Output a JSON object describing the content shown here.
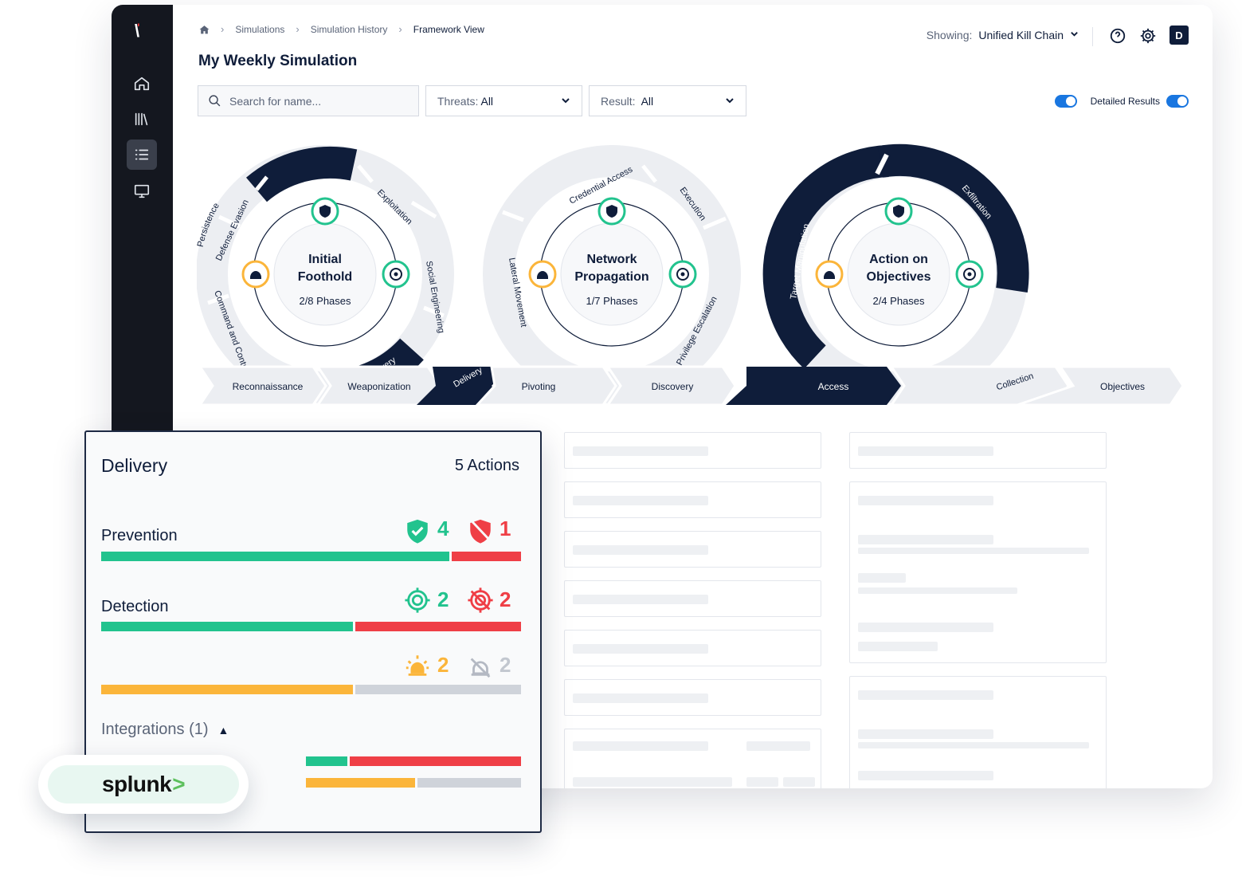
{
  "breadcrumb": {
    "home_icon": "home-icon",
    "items": [
      "Simulations",
      "Simulation History",
      "Framework View"
    ]
  },
  "page_title": "My Weekly Simulation",
  "header": {
    "showing_label": "Showing:",
    "showing_value": "Unified Kill Chain",
    "avatar": "D"
  },
  "filters": {
    "search_placeholder": "Search for name...",
    "threats_label": "Threats:",
    "threats_value": "All",
    "result_label": "Result:",
    "result_value": "All",
    "detailed_results_label": "Detailed Results"
  },
  "kill_chain": {
    "cycles": [
      {
        "title_line1": "Initial",
        "title_line2": "Foothold",
        "phases": "2/8 Phases"
      },
      {
        "title_line1": "Network",
        "title_line2": "Propagation",
        "phases": "1/7 Phases"
      },
      {
        "title_line1": "Action on",
        "title_line2": "Objectives",
        "phases": "2/4 Phases"
      }
    ],
    "ring1_labels": [
      "Persistence",
      "Exploitation",
      "Social Engineering",
      "Delivery",
      "Command and Control",
      "Defense Evasion"
    ],
    "ring2_labels": [
      "Credential Access",
      "Execution",
      "Privilege Escalation",
      "Lateral Movement"
    ],
    "ring3_labels": [
      "Exfiltration",
      "Target Manipulation"
    ],
    "track_labels": [
      "Reconnaissance",
      "Weaponization",
      "Delivery",
      "Pivoting",
      "Discovery",
      "Access",
      "Collection",
      "Objectives"
    ]
  },
  "delivery_card": {
    "title": "Delivery",
    "actions": "5 Actions",
    "prevention_label": "Prevention",
    "prevention_pass": "4",
    "prevention_fail": "1",
    "detection_label": "Detection",
    "detection_pass": "2",
    "detection_fail": "2",
    "alert_pass": "2",
    "alert_fail": "2",
    "integrations_label": "Integrations (1)",
    "integration_name": "splunk",
    "integration_mark": ">"
  },
  "colors": {
    "navy": "#0f1d3a",
    "success": "#22c38e",
    "danger": "#ef3f46",
    "warning": "#fbb53a",
    "neutral": "#cfd3da",
    "toggle": "#1976e0"
  }
}
